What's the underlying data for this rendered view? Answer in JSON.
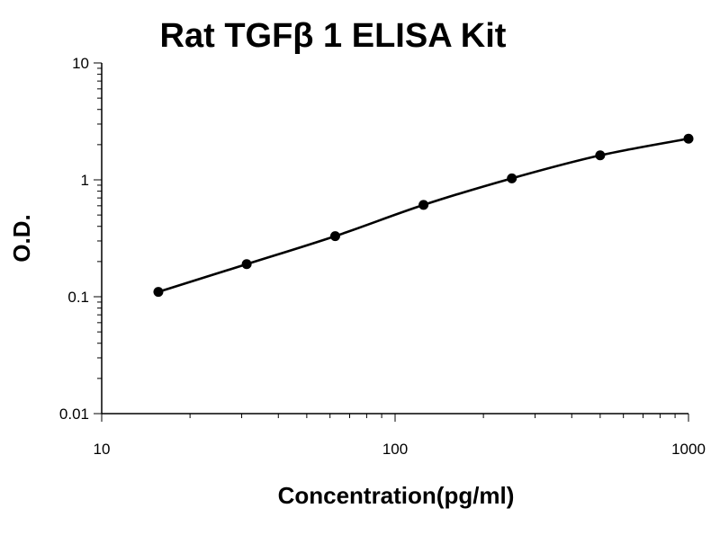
{
  "chart_data": {
    "type": "scatter",
    "title": "Rat TGFβ 1 ELISA Kit",
    "xlabel": "Concentration(pg/ml)",
    "ylabel": "O.D.",
    "xscale": "log",
    "yscale": "log",
    "xlim": [
      10,
      1000
    ],
    "ylim": [
      0.01,
      10
    ],
    "xticks": [
      "10",
      "100",
      "1000"
    ],
    "yticks": [
      "10",
      "1",
      "0.1",
      "0.01"
    ],
    "grid": false,
    "legend": "none",
    "line_color": "#000000",
    "series": [
      {
        "x": [
          15.6,
          31.2,
          62.5,
          125,
          250,
          500,
          1000
        ],
        "y": [
          0.11,
          0.19,
          0.33,
          0.61,
          1.03,
          1.62,
          2.25
        ]
      }
    ]
  }
}
